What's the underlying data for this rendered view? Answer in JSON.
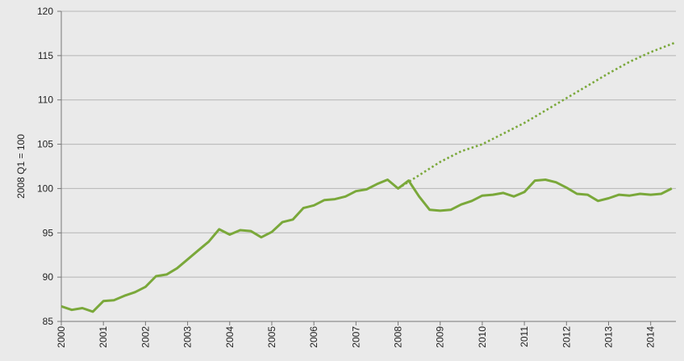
{
  "chart_data": {
    "type": "line",
    "title": "",
    "xlabel": "",
    "ylabel": "2008 Q1 = 100",
    "ylim": [
      85,
      120
    ],
    "yticks": [
      85,
      90,
      95,
      100,
      105,
      110,
      115,
      120
    ],
    "xlim": [
      2000,
      2014.6
    ],
    "xticks": [
      "2000",
      "2001",
      "2002",
      "2003",
      "2004",
      "2005",
      "2006",
      "2007",
      "2008",
      "2009",
      "2010",
      "2011",
      "2012",
      "2013",
      "2014"
    ],
    "grid": "horizontal",
    "legend": "none",
    "colors": {
      "series": "#7aa83a",
      "grid": "#b5b5b5",
      "axis": "#777777",
      "background": "#eaeaea"
    },
    "series": [
      {
        "style": "solid",
        "x": [
          2000.0,
          2000.25,
          2000.5,
          2000.75,
          2001.0,
          2001.25,
          2001.5,
          2001.75,
          2002.0,
          2002.25,
          2002.5,
          2002.75,
          2003.0,
          2003.25,
          2003.5,
          2003.75,
          2004.0,
          2004.25,
          2004.5,
          2004.75,
          2005.0,
          2005.25,
          2005.5,
          2005.75,
          2006.0,
          2006.25,
          2006.5,
          2006.75,
          2007.0,
          2007.25,
          2007.5,
          2007.75,
          2008.0,
          2008.25,
          2008.5,
          2008.75,
          2009.0,
          2009.25,
          2009.5,
          2009.75,
          2010.0,
          2010.25,
          2010.5,
          2010.75,
          2011.0,
          2011.25,
          2011.5,
          2011.75,
          2012.0,
          2012.25,
          2012.5,
          2012.75,
          2013.0,
          2013.25,
          2013.5,
          2013.75,
          2014.0,
          2014.25,
          2014.5
        ],
        "values": [
          86.7,
          86.3,
          86.5,
          86.1,
          87.3,
          87.4,
          87.9,
          88.3,
          88.9,
          90.1,
          90.3,
          91.0,
          92.0,
          93.0,
          94.0,
          95.4,
          94.8,
          95.3,
          95.2,
          94.5,
          95.1,
          96.2,
          96.5,
          97.8,
          98.1,
          98.7,
          98.8,
          99.1,
          99.7,
          99.9,
          100.5,
          101.0,
          100.0,
          100.9,
          99.1,
          97.6,
          97.5,
          97.6,
          98.2,
          98.6,
          99.2,
          99.3,
          99.5,
          99.1,
          99.6,
          100.9,
          101.0,
          100.7,
          100.1,
          99.4,
          99.3,
          98.6,
          98.9,
          99.3,
          99.2,
          99.4,
          99.3,
          99.4,
          100.0
        ]
      },
      {
        "style": "dotted",
        "x": [
          2008.0,
          2008.5,
          2009.0,
          2009.5,
          2010.0,
          2010.5,
          2011.0,
          2011.5,
          2012.0,
          2012.5,
          2013.0,
          2013.5,
          2014.0,
          2014.6
        ],
        "values": [
          100.0,
          101.5,
          103.0,
          104.2,
          105.0,
          106.2,
          107.4,
          108.8,
          110.2,
          111.6,
          113.0,
          114.3,
          115.4,
          116.5
        ]
      }
    ]
  }
}
